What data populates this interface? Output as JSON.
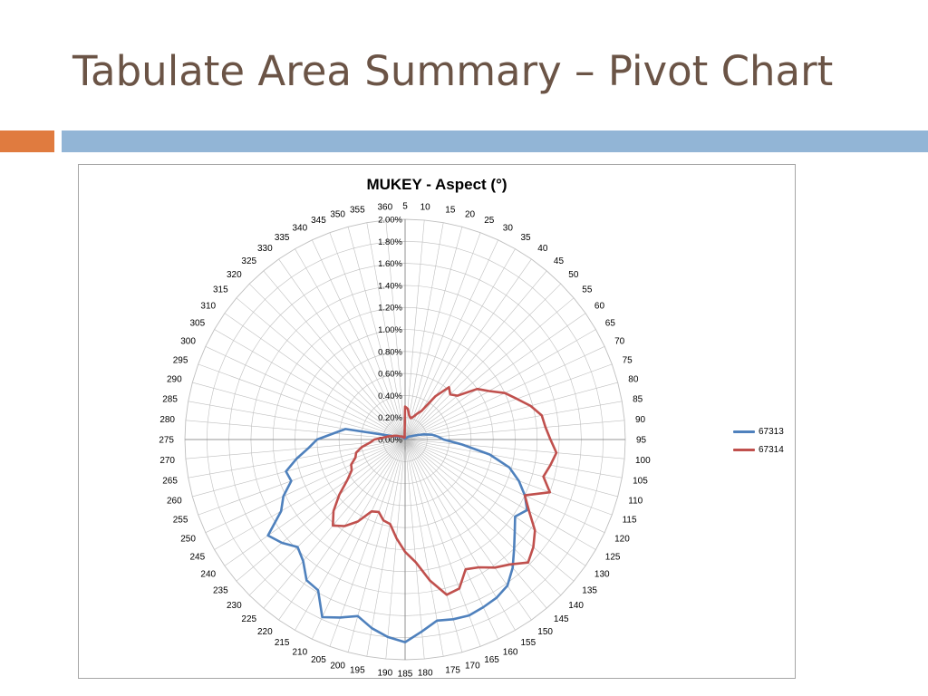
{
  "slide": {
    "title": "Tabulate Area Summary – Pivot Chart"
  },
  "colors": {
    "title_text": "#6b5446",
    "accent_band": "#e07b3f",
    "main_band": "#92b5d6",
    "grid": "#bfbfbf",
    "axis": "#7f7f7f"
  },
  "chart_data": {
    "type": "radar",
    "title": "MUKEY - Aspect (°)",
    "categories": [
      "5",
      "10",
      "15",
      "20",
      "25",
      "30",
      "35",
      "40",
      "45",
      "50",
      "55",
      "60",
      "65",
      "70",
      "75",
      "80",
      "85",
      "90",
      "95",
      "100",
      "105",
      "110",
      "115",
      "120",
      "125",
      "130",
      "135",
      "140",
      "145",
      "150",
      "155",
      "160",
      "165",
      "170",
      "175",
      "180",
      "185",
      "190",
      "195",
      "200",
      "205",
      "210",
      "215",
      "220",
      "225",
      "230",
      "235",
      "240",
      "245",
      "250",
      "255",
      "260",
      "265",
      "270",
      "275",
      "280",
      "285",
      "290",
      "295",
      "300",
      "305",
      "310",
      "315",
      "320",
      "325",
      "330",
      "335",
      "340",
      "345",
      "350",
      "355",
      "360"
    ],
    "r_tick_labels": [
      "0.00%",
      "0.20%",
      "0.40%",
      "0.60%",
      "0.80%",
      "1.00%",
      "1.20%",
      "1.40%",
      "1.60%",
      "1.80%",
      "2.00%"
    ],
    "rlim": [
      0,
      2.0
    ],
    "r_unit": "percent",
    "grid": true,
    "legend_position": "right",
    "series": [
      {
        "name": "67313",
        "color": "#4f81bd",
        "values": [
          0.01,
          0.01,
          0.01,
          0.01,
          0.01,
          0.01,
          0.02,
          0.02,
          0.02,
          0.03,
          0.04,
          0.05,
          0.06,
          0.08,
          0.12,
          0.18,
          0.25,
          0.3,
          0.35,
          0.52,
          0.78,
          0.98,
          1.1,
          1.2,
          1.28,
          1.22,
          1.3,
          1.4,
          1.52,
          1.62,
          1.66,
          1.68,
          1.7,
          1.69,
          1.67,
          1.75,
          1.84,
          1.8,
          1.74,
          1.66,
          1.72,
          1.78,
          1.58,
          1.56,
          1.44,
          1.38,
          1.46,
          1.52,
          1.3,
          1.22,
          1.1,
          1.12,
          1.0,
          0.88,
          0.8,
          0.65,
          0.55,
          0.12,
          0.08,
          0.06,
          0.05,
          0.04,
          0.03,
          0.03,
          0.02,
          0.02,
          0.02,
          0.01,
          0.01,
          0.01,
          0.01,
          0.02
        ]
      },
      {
        "name": "67314",
        "color": "#c0504d",
        "values": [
          0.3,
          0.28,
          0.22,
          0.2,
          0.22,
          0.26,
          0.3,
          0.48,
          0.62,
          0.58,
          0.62,
          0.8,
          0.88,
          1.0,
          1.08,
          1.18,
          1.26,
          1.28,
          1.32,
          1.38,
          1.34,
          1.3,
          1.4,
          1.2,
          1.3,
          1.44,
          1.52,
          1.58,
          1.48,
          1.42,
          1.34,
          1.3,
          1.44,
          1.46,
          1.3,
          1.12,
          1.02,
          0.9,
          0.78,
          0.76,
          0.7,
          0.72,
          0.86,
          0.96,
          1.02,
          0.92,
          0.78,
          0.64,
          0.56,
          0.54,
          0.48,
          0.46,
          0.4,
          0.32,
          0.28,
          0.2,
          0.16,
          0.12,
          0.1,
          0.08,
          0.06,
          0.05,
          0.04,
          0.04,
          0.03,
          0.03,
          0.02,
          0.02,
          0.02,
          0.02,
          0.02,
          0.05
        ]
      }
    ]
  }
}
